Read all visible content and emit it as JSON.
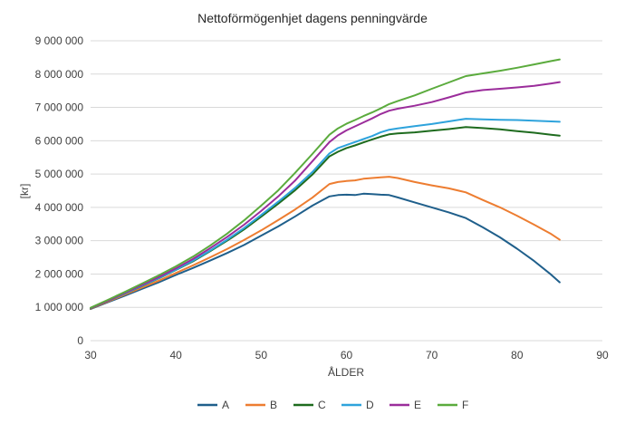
{
  "chart_data": {
    "type": "line",
    "title": "Nettoförmögenhjet dagens penningvärde",
    "xlabel": "ÅLDER",
    "ylabel": "[kr]",
    "xlim": [
      30,
      90
    ],
    "ylim": [
      0,
      9000000
    ],
    "xticks": [
      30,
      40,
      50,
      60,
      70,
      80,
      90
    ],
    "yticks": [
      0,
      1000000,
      2000000,
      3000000,
      4000000,
      5000000,
      6000000,
      7000000,
      8000000,
      9000000
    ],
    "ytick_labels": [
      "0",
      "1 000 000",
      "2 000 000",
      "3 000 000",
      "4 000 000",
      "5 000 000",
      "6 000 000",
      "7 000 000",
      "8 000 000",
      "9 000 000"
    ],
    "grid": "horizontal",
    "legend": "bottom",
    "x": [
      30,
      32,
      34,
      36,
      38,
      40,
      42,
      44,
      46,
      48,
      50,
      52,
      54,
      56,
      58,
      59,
      60,
      61,
      62,
      63,
      64,
      65,
      66,
      68,
      70,
      72,
      74,
      76,
      78,
      80,
      82,
      84,
      85
    ],
    "series": [
      {
        "name": "A",
        "color": "#1f5f8b",
        "values": [
          950000,
          1150000,
          1350000,
          1550000,
          1750000,
          1970000,
          2180000,
          2400000,
          2630000,
          2870000,
          3150000,
          3430000,
          3730000,
          4050000,
          4330000,
          4370000,
          4380000,
          4370000,
          4410000,
          4400000,
          4380000,
          4370000,
          4300000,
          4150000,
          4000000,
          3850000,
          3680000,
          3400000,
          3100000,
          2760000,
          2390000,
          1980000,
          1750000
        ]
      },
      {
        "name": "B",
        "color": "#ed7d31",
        "values": [
          960000,
          1170000,
          1380000,
          1590000,
          1800000,
          2030000,
          2260000,
          2500000,
          2750000,
          3020000,
          3310000,
          3620000,
          3940000,
          4290000,
          4700000,
          4760000,
          4790000,
          4810000,
          4860000,
          4880000,
          4900000,
          4920000,
          4880000,
          4760000,
          4660000,
          4570000,
          4450000,
          4220000,
          4000000,
          3750000,
          3480000,
          3200000,
          3030000
        ]
      },
      {
        "name": "C",
        "color": "#1e6b1e",
        "values": [
          970000,
          1190000,
          1410000,
          1640000,
          1870000,
          2120000,
          2380000,
          2680000,
          3000000,
          3340000,
          3720000,
          4110000,
          4520000,
          4980000,
          5530000,
          5670000,
          5780000,
          5860000,
          5950000,
          6040000,
          6120000,
          6190000,
          6220000,
          6250000,
          6300000,
          6350000,
          6410000,
          6380000,
          6340000,
          6290000,
          6240000,
          6180000,
          6150000
        ]
      },
      {
        "name": "D",
        "color": "#2ea3dc",
        "values": [
          975000,
          1195000,
          1415000,
          1645000,
          1880000,
          2130000,
          2400000,
          2700000,
          3030000,
          3380000,
          3770000,
          4170000,
          4590000,
          5060000,
          5620000,
          5780000,
          5870000,
          5960000,
          6050000,
          6140000,
          6250000,
          6330000,
          6370000,
          6440000,
          6500000,
          6580000,
          6660000,
          6640000,
          6630000,
          6620000,
          6600000,
          6580000,
          6570000
        ]
      },
      {
        "name": "E",
        "color": "#9b2d9b",
        "values": [
          980000,
          1200000,
          1430000,
          1670000,
          1910000,
          2170000,
          2450000,
          2770000,
          3110000,
          3480000,
          3890000,
          4330000,
          4810000,
          5380000,
          5960000,
          6160000,
          6310000,
          6430000,
          6550000,
          6670000,
          6800000,
          6900000,
          6960000,
          7050000,
          7160000,
          7300000,
          7450000,
          7520000,
          7560000,
          7600000,
          7650000,
          7720000,
          7760000
        ]
      },
      {
        "name": "F",
        "color": "#5bab3d",
        "values": [
          990000,
          1220000,
          1460000,
          1710000,
          1960000,
          2230000,
          2520000,
          2850000,
          3210000,
          3610000,
          4050000,
          4510000,
          5040000,
          5600000,
          6180000,
          6370000,
          6510000,
          6620000,
          6740000,
          6850000,
          6970000,
          7100000,
          7190000,
          7360000,
          7560000,
          7750000,
          7940000,
          8020000,
          8100000,
          8190000,
          8290000,
          8390000,
          8440000
        ]
      }
    ]
  }
}
